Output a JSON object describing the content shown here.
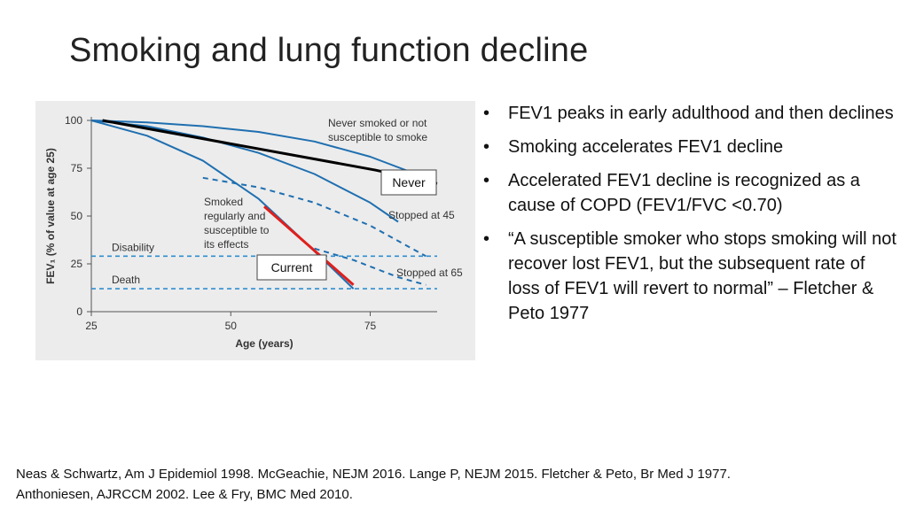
{
  "slide": {
    "title": "Smoking and lung function decline",
    "bullets": [
      "FEV1 peaks in early adulthood and then declines",
      "Smoking accelerates FEV1 decline",
      "Accelerated FEV1 decline is recognized as a cause of COPD (FEV1/FVC <0.70)",
      "“A susceptible smoker who stops smoking will not recover lost FEV1, but the subsequent rate of loss of FEV1 will revert to normal” – Fletcher & Peto 1977"
    ],
    "bullet_glyph": "•",
    "references": [
      "Neas & Schwartz, Am J Epidemiol 1998. McGeachie, NEJM 2016. Lange P, NEJM 2015.   Fletcher & Peto, Br Med J 1977.",
      "Anthoniesen, AJRCCM 2002. Lee & Fry, BMC Med 2010."
    ]
  },
  "chart_data": {
    "type": "line",
    "xlabel": "Age (years)",
    "ylabel": "FEV₁ (% of value at age 25)",
    "xlim": [
      25,
      87
    ],
    "ylim": [
      0,
      100
    ],
    "x_ticks": [
      "25",
      "50",
      "75"
    ],
    "y_ticks": [
      "0",
      "25",
      "50",
      "75",
      "100"
    ],
    "grid": false,
    "colors": {
      "curve": "#1f6fb0",
      "overlay_never": "#000000",
      "overlay_current": "#e0201c",
      "threshold": "#2e8fd0"
    },
    "series": [
      {
        "label": "Never smoked or not susceptible to smoke",
        "style": "solid",
        "x": [
          25,
          35,
          45,
          55,
          65,
          75,
          85
        ],
        "y": [
          100,
          99,
          97,
          94,
          89,
          81,
          70
        ]
      },
      {
        "label": "Smoked regularly and susceptible to its effects",
        "style": "solid",
        "x": [
          25,
          35,
          45,
          55,
          62,
          67,
          72
        ],
        "y": [
          100,
          92,
          79,
          59,
          40,
          26,
          12
        ]
      },
      {
        "label": "",
        "style": "solid",
        "x": [
          25,
          35,
          45,
          55,
          65,
          75,
          80
        ],
        "y": [
          100,
          97,
          91,
          83,
          72,
          57,
          47
        ]
      },
      {
        "label": "Stopped at 45",
        "style": "dashed",
        "x": [
          45,
          55,
          65,
          75,
          85
        ],
        "y": [
          70,
          65,
          57,
          45,
          29
        ]
      },
      {
        "label": "Stopped at 65",
        "style": "dashed",
        "x": [
          65,
          72,
          80,
          85
        ],
        "y": [
          33,
          27,
          18,
          14
        ]
      }
    ],
    "thresholds": [
      {
        "label": "Disability",
        "y": 29
      },
      {
        "label": "Death",
        "y": 12
      }
    ],
    "overlays": [
      {
        "label": "Never",
        "x": [
          27,
          76,
          87
        ],
        "y": [
          100,
          74,
          67
        ]
      },
      {
        "label": "Current",
        "x": [
          56,
          72
        ],
        "y": [
          55,
          14
        ]
      }
    ],
    "annotations": [
      {
        "lines": [
          "Never smoked or not",
          "susceptible to smoke"
        ]
      },
      {
        "lines": [
          "Smoked",
          "regularly and",
          "susceptible to",
          "its effects"
        ]
      },
      {
        "lines": [
          "Stopped at 45"
        ]
      },
      {
        "lines": [
          "Stopped at 65"
        ]
      }
    ]
  }
}
